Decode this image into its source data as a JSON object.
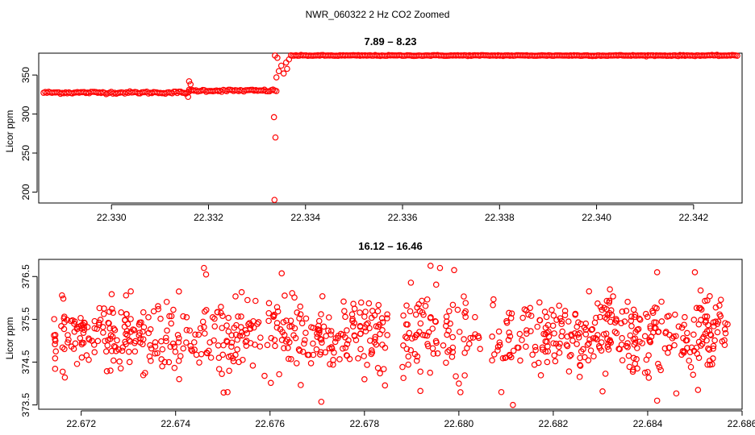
{
  "figure": {
    "suptitle": "NWR_060322  2 Hz CO2 Zoomed"
  },
  "chart_data": [
    {
      "type": "scatter",
      "title": "7.89 – 8.23",
      "xlabel": "",
      "ylabel": "Licor ppm",
      "xlim": [
        22.3285,
        22.343
      ],
      "ylim": [
        186,
        378
      ],
      "x_ticks": [
        "22.330",
        "22.332",
        "22.334",
        "22.336",
        "22.338",
        "22.340",
        "22.342"
      ],
      "x_tick_values": [
        22.33,
        22.332,
        22.334,
        22.336,
        22.338,
        22.34,
        22.342
      ],
      "y_ticks": [
        "200",
        "250",
        "300",
        "350"
      ],
      "y_tick_values": [
        200,
        250,
        300,
        350
      ],
      "marker_color": "#ff0000",
      "grid": false,
      "segments": [
        {
          "x_start": 22.3286,
          "x_end": 22.3316,
          "y": 327.5,
          "noise": 1.5
        },
        {
          "x_start": 22.3316,
          "x_end": 22.3334,
          "y": 330.0,
          "noise": 1.5
        },
        {
          "x_start": 22.3337,
          "x_end": 22.3429,
          "y": 375.0,
          "noise": 0.6
        }
      ],
      "outliers": [
        {
          "x": 22.3316,
          "y": 342
        },
        {
          "x": 22.33163,
          "y": 338
        },
        {
          "x": 22.33158,
          "y": 322
        },
        {
          "x": 22.33335,
          "y": 296
        },
        {
          "x": 22.33338,
          "y": 270
        },
        {
          "x": 22.33336,
          "y": 190
        },
        {
          "x": 22.3334,
          "y": 347
        },
        {
          "x": 22.33345,
          "y": 355
        },
        {
          "x": 22.3335,
          "y": 362
        },
        {
          "x": 22.33355,
          "y": 352
        },
        {
          "x": 22.3336,
          "y": 366
        },
        {
          "x": 22.33362,
          "y": 358
        },
        {
          "x": 22.33366,
          "y": 370
        },
        {
          "x": 22.33337,
          "y": 375
        },
        {
          "x": 22.33342,
          "y": 372
        }
      ]
    },
    {
      "type": "scatter",
      "title": "16.12 – 16.46",
      "xlabel": "",
      "ylabel": "Licor ppm",
      "xlim": [
        22.6711,
        22.686
      ],
      "ylim": [
        373.4,
        376.9
      ],
      "x_ticks": [
        "22.672",
        "22.674",
        "22.676",
        "22.678",
        "22.680",
        "22.682",
        "22.684",
        "22.686"
      ],
      "x_tick_values": [
        22.672,
        22.674,
        22.676,
        22.678,
        22.68,
        22.682,
        22.684,
        22.686
      ],
      "y_ticks": [
        "373.5",
        "374.5",
        "375.5",
        "376.5"
      ],
      "y_tick_values": [
        373.5,
        374.5,
        375.5,
        376.5
      ],
      "marker_color": "#ff0000",
      "grid": false,
      "x_range": [
        22.6714,
        22.6857
      ],
      "y_center": 375.1,
      "y_spread": 0.45,
      "n_points": 900,
      "gaps": [
        [
          22.6785,
          22.6788
        ],
        [
          22.6805,
          22.6807
        ]
      ],
      "extremes": [
        {
          "x": 22.6746,
          "y": 376.7
        },
        {
          "x": 22.6794,
          "y": 376.75
        },
        {
          "x": 22.6796,
          "y": 376.7
        },
        {
          "x": 22.6799,
          "y": 376.65
        },
        {
          "x": 22.6842,
          "y": 376.6
        },
        {
          "x": 22.685,
          "y": 376.6
        },
        {
          "x": 22.6832,
          "y": 376.2
        },
        {
          "x": 22.6751,
          "y": 373.8
        },
        {
          "x": 22.6809,
          "y": 373.8
        },
        {
          "x": 22.6842,
          "y": 373.6
        },
        {
          "x": 22.678,
          "y": 374.1
        },
        {
          "x": 22.68,
          "y": 374.0
        }
      ]
    }
  ]
}
